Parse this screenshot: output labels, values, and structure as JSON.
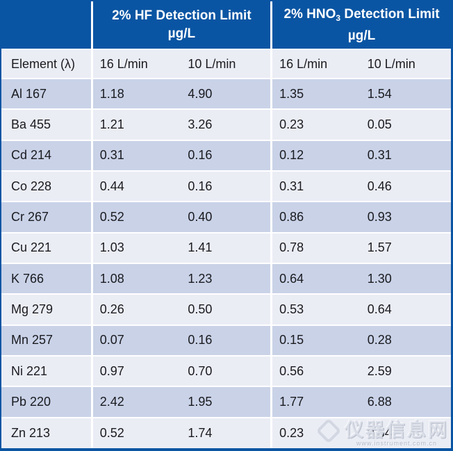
{
  "table": {
    "group_headers": {
      "hf": {
        "title": "2% HF Detection Limit",
        "unit": "µg/L"
      },
      "hno3": {
        "title_prefix": "2% HNO",
        "title_subscript": "3",
        "title_suffix": " Detection Limit",
        "unit": "µg/L"
      }
    },
    "columns": {
      "element": "Element (λ)",
      "flow_cols": [
        "16 L/min",
        "10 L/min",
        "16 L/min",
        "10 L/min"
      ]
    },
    "rows": [
      {
        "element": "Al 167",
        "values": [
          "1.18",
          "4.90",
          "1.35",
          "1.54"
        ]
      },
      {
        "element": "Ba 455",
        "values": [
          "1.21",
          "3.26",
          "0.23",
          "0.05"
        ]
      },
      {
        "element": "Cd 214",
        "values": [
          "0.31",
          "0.16",
          "0.12",
          "0.31"
        ]
      },
      {
        "element": "Co 228",
        "values": [
          "0.44",
          "0.16",
          "0.31",
          "0.46"
        ]
      },
      {
        "element": "Cr 267",
        "values": [
          "0.52",
          "0.40",
          "0.86",
          "0.93"
        ]
      },
      {
        "element": "Cu 221",
        "values": [
          "1.03",
          "1.41",
          "0.78",
          "1.57"
        ]
      },
      {
        "element": "K 766",
        "values": [
          "1.08",
          "1.23",
          "0.64",
          "1.30"
        ]
      },
      {
        "element": "Mg 279",
        "values": [
          "0.26",
          "0.50",
          "0.53",
          "0.64"
        ]
      },
      {
        "element": "Mn 257",
        "values": [
          "0.07",
          "0.16",
          "0.15",
          "0.28"
        ]
      },
      {
        "element": "Ni 221",
        "values": [
          "0.97",
          "0.70",
          "0.56",
          "2.59"
        ]
      },
      {
        "element": "Pb 220",
        "values": [
          "2.42",
          "1.95",
          "1.77",
          "6.88"
        ]
      },
      {
        "element": "Zn 213",
        "values": [
          "0.52",
          "1.74",
          "0.23",
          "0.54"
        ]
      }
    ]
  },
  "colors": {
    "header_blue": "#0a55a3",
    "row_light": "#ebedf5",
    "row_shaded": "#c9d2e7",
    "divider_white": "#ffffff",
    "text_dark": "#1a1a1f"
  },
  "watermark": {
    "text": "仪器信息网",
    "url": "www.instrument.com.cn"
  }
}
